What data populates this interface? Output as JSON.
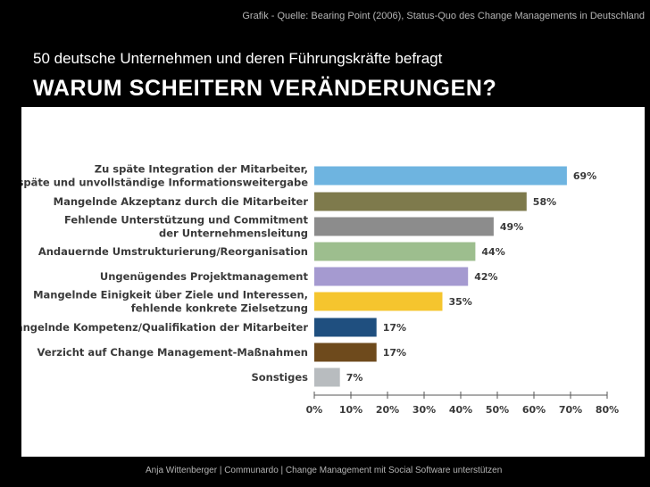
{
  "header": {
    "source": "Grafik  - Quelle: Bearing Point (2006), Status-Quo des Change Managements in Deutschland",
    "subtitle": "50 deutsche Unternehmen und deren Führungskräfte befragt",
    "title": "WARUM SCHEITERN VERÄNDERUNGEN?"
  },
  "footer": {
    "text": "Anja Wittenberger | Communardo | Change Management mit Social Software unterstützen"
  },
  "chart_data": {
    "type": "bar",
    "orientation": "horizontal",
    "title": "",
    "xlabel": "",
    "ylabel": "",
    "xlim": [
      0,
      80
    ],
    "grid": false,
    "ticks": [
      "0%",
      "10%",
      "20%",
      "30%",
      "40%",
      "50%",
      "60%",
      "70%",
      "80%"
    ],
    "categories": [
      [
        "Zu späte Integration der Mitarbeiter,",
        "späte und unvollständige Informationsweitergabe"
      ],
      [
        "Mangelnde Akzeptanz durch die Mitarbeiter"
      ],
      [
        "Fehlende Unterstützung und Commitment",
        "der Unternehmensleitung"
      ],
      [
        "Andauernde Umstrukturierung/Reorganisation"
      ],
      [
        "Ungenügendes Projektmanagement"
      ],
      [
        "Mangelnde Einigkeit über Ziele und Interessen,",
        "fehlende konkrete Zielsetzung"
      ],
      [
        "Mangelnde Kompetenz/Qualifikation der Mitarbeiter"
      ],
      [
        "Verzicht auf Change Management-Maßnahmen"
      ],
      [
        "Sonstiges"
      ]
    ],
    "values": [
      69,
      58,
      49,
      44,
      42,
      35,
      17,
      17,
      7
    ],
    "value_labels": [
      "69%",
      "58%",
      "49%",
      "44%",
      "42%",
      "35%",
      "17%",
      "17%",
      "7%"
    ],
    "colors": [
      "#6eb4e0",
      "#7e7a4c",
      "#8c8c8c",
      "#9dbe8e",
      "#a59ad0",
      "#f5c52e",
      "#1f4f7f",
      "#6e4a1c",
      "#b8bcbf"
    ]
  }
}
